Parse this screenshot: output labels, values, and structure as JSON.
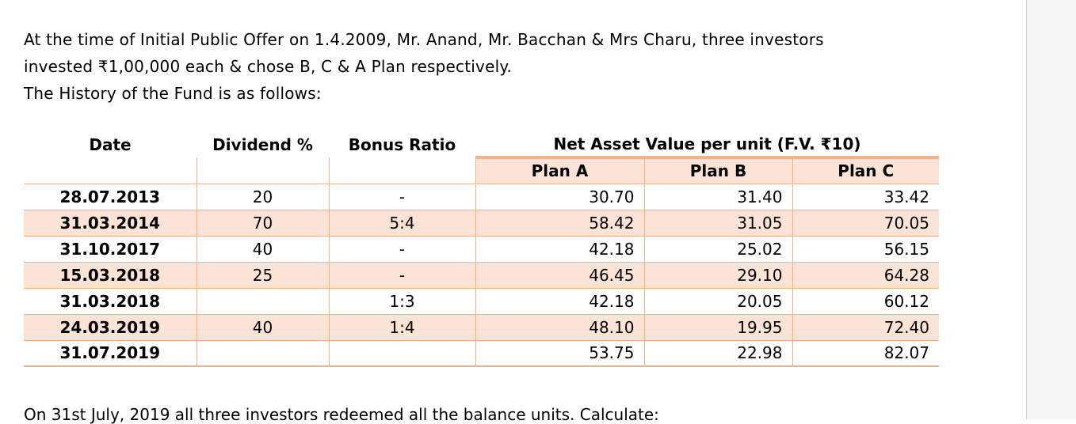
{
  "intro": {
    "line1": "At the time of Initial Public Offer on 1.4.2009, Mr. Anand, Mr. Bacchan & Mrs Charu, three investors",
    "line2": "invested ₹1,00,000 each & chose B, C & A Plan respectively.",
    "line3": "The History of the Fund is as follows:"
  },
  "table": {
    "headers": {
      "date": "Date",
      "dividend": "Dividend %",
      "bonus": "Bonus Ratio",
      "nav": "Net Asset Value per unit (F.V. ₹10)",
      "plan_a": "Plan A",
      "plan_b": "Plan B",
      "plan_c": "Plan C"
    },
    "rows": [
      {
        "date": "28.07.2013",
        "dividend": "20",
        "bonus": "-",
        "a": "30.70",
        "b": "31.40",
        "c": "33.42"
      },
      {
        "date": "31.03.2014",
        "dividend": "70",
        "bonus": "5:4",
        "a": "58.42",
        "b": "31.05",
        "c": "70.05"
      },
      {
        "date": "31.10.2017",
        "dividend": "40",
        "bonus": "-",
        "a": "42.18",
        "b": "25.02",
        "c": "56.15"
      },
      {
        "date": "15.03.2018",
        "dividend": "25",
        "bonus": "-",
        "a": "46.45",
        "b": "29.10",
        "c": "64.28"
      },
      {
        "date": "31.03.2018",
        "dividend": "",
        "bonus": "1:3",
        "a": "42.18",
        "b": "20.05",
        "c": "60.12"
      },
      {
        "date": "24.03.2019",
        "dividend": "40",
        "bonus": "1:4",
        "a": "48.10",
        "b": "19.95",
        "c": "72.40"
      },
      {
        "date": "31.07.2019",
        "dividend": "",
        "bonus": "",
        "a": "53.75",
        "b": "22.98",
        "c": "82.07"
      }
    ]
  },
  "footer_text": "On 31st July, 2019 all three investors redeemed all the balance units. Calculate:"
}
